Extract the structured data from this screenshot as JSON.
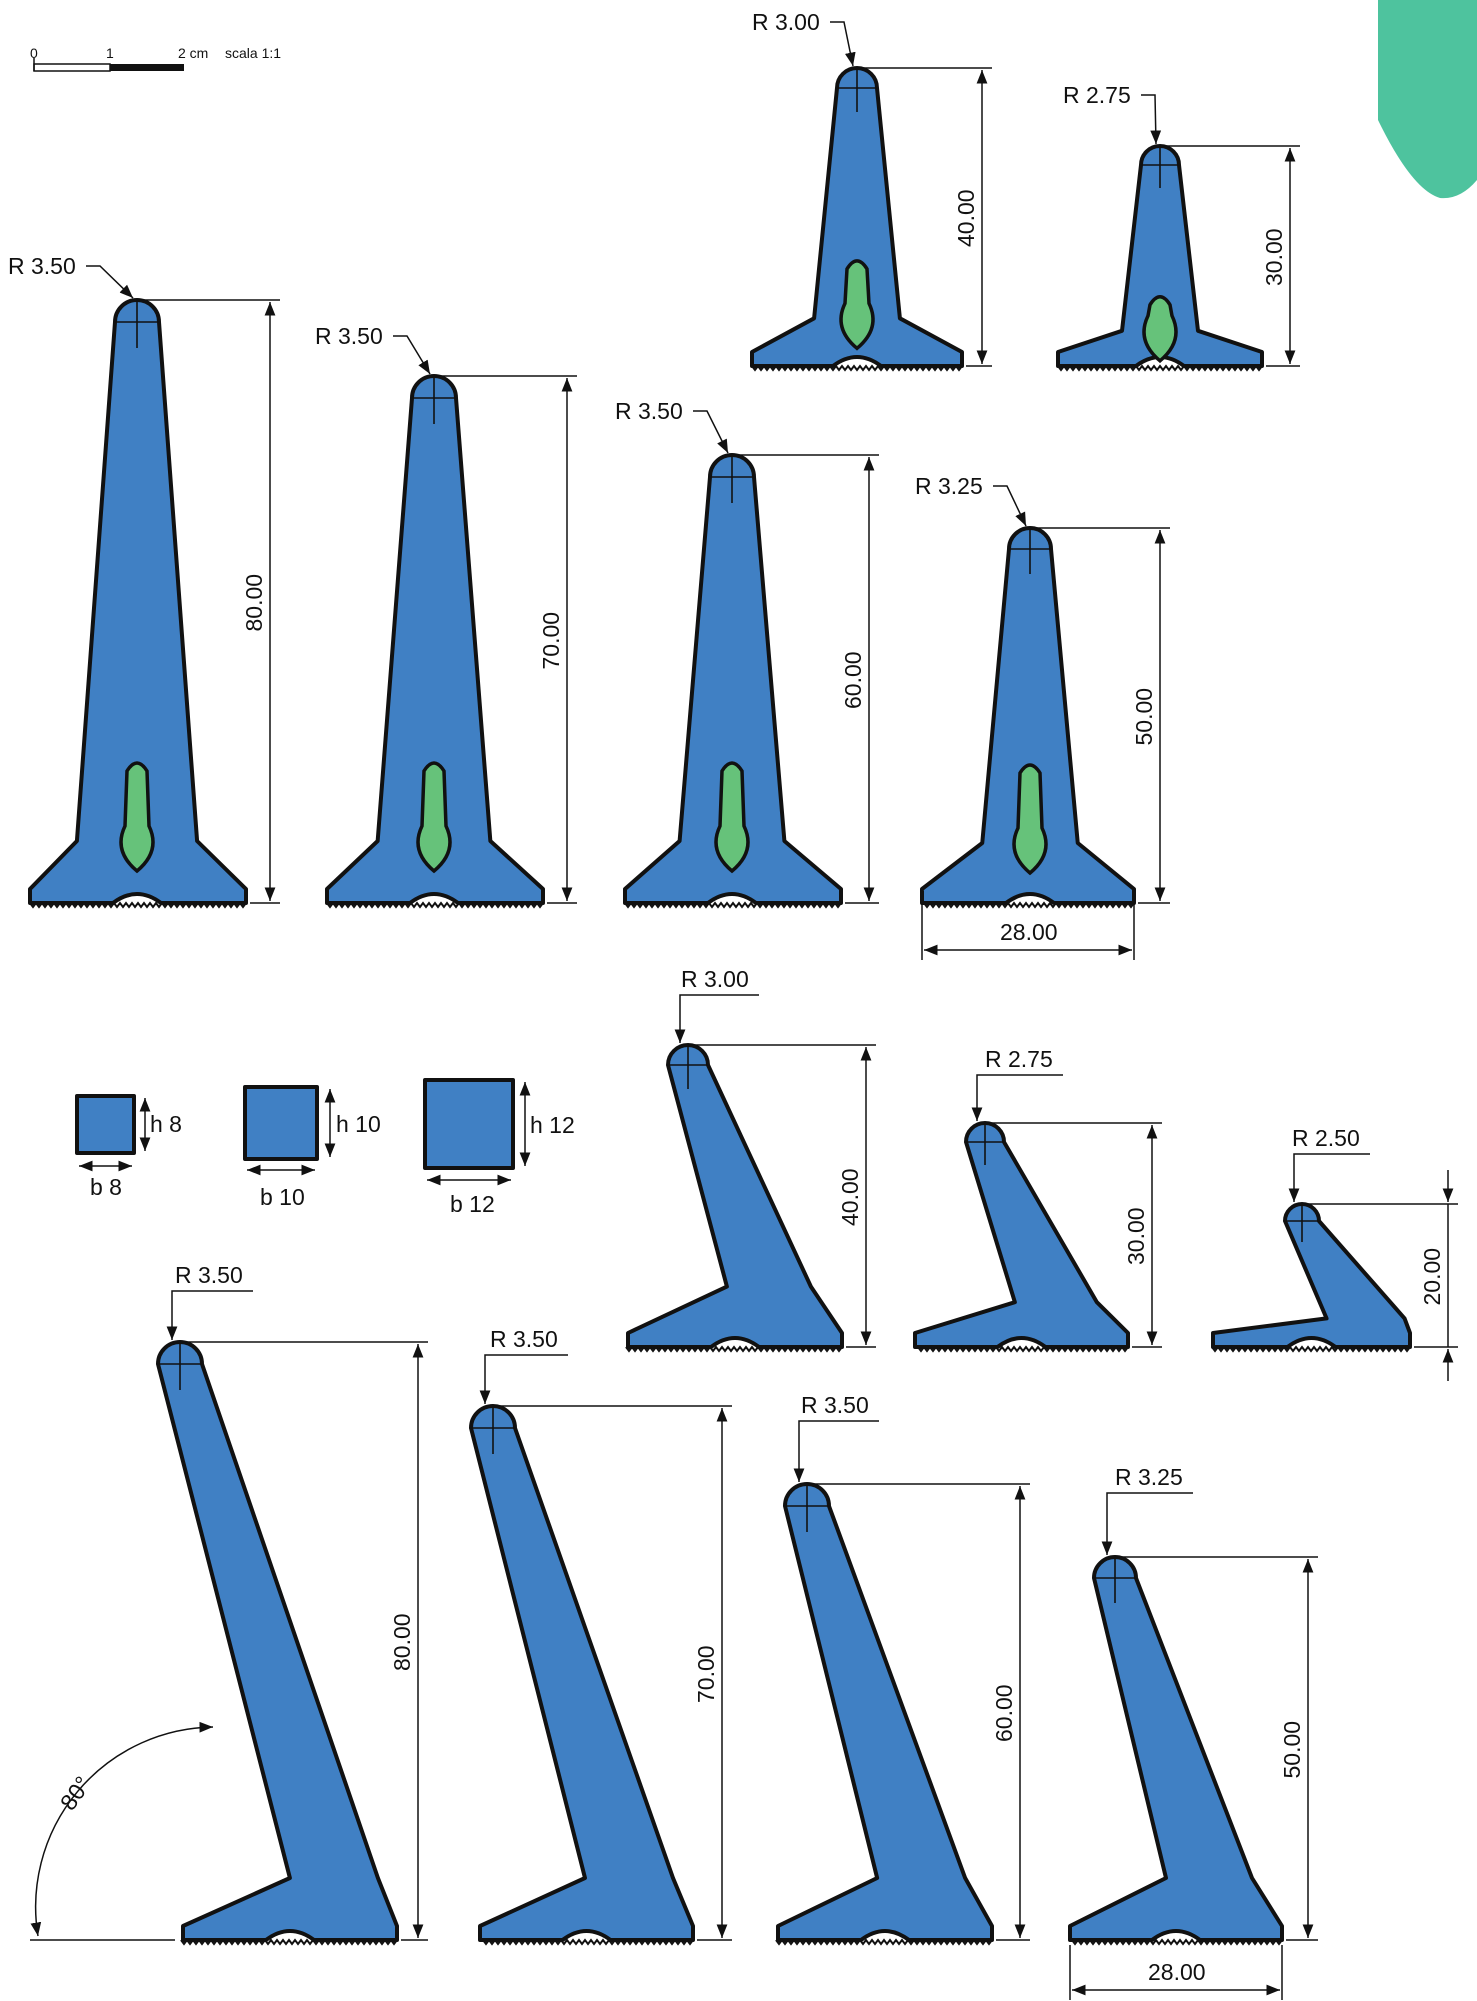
{
  "scale_bar": {
    "label_0": "0",
    "label_1": "1",
    "label_2": "2 cm",
    "scale_text": "scala 1:1"
  },
  "colors": {
    "profile": "#4080c4",
    "slot": "#66c27a",
    "tab": "#4ec39e",
    "outline": "#111111"
  },
  "symmetric_top": [
    {
      "radius": "R 3.00",
      "height": "40.00",
      "slot": true
    },
    {
      "radius": "R 2.75",
      "height": "30.00",
      "slot": true
    }
  ],
  "symmetric_main": [
    {
      "radius": "R 3.50",
      "height": "80.00",
      "slot": true
    },
    {
      "radius": "R 3.50",
      "height": "70.00",
      "slot": true
    },
    {
      "radius": "R 3.50",
      "height": "60.00",
      "slot": true
    },
    {
      "radius": "R 3.25",
      "height": "50.00",
      "slot": true
    }
  ],
  "base_width_label": "28.00",
  "sections": [
    {
      "h": "h 8",
      "b": "b 8"
    },
    {
      "h": "h 10",
      "b": "b 10"
    },
    {
      "h": "h 12",
      "b": "b 12"
    }
  ],
  "inclined_small": [
    {
      "radius": "R 3.00",
      "height": "40.00"
    },
    {
      "radius": "R 2.75",
      "height": "30.00"
    },
    {
      "radius": "R 2.50",
      "height": "20.00"
    }
  ],
  "inclined_main": [
    {
      "radius": "R 3.50",
      "height": "80.00"
    },
    {
      "radius": "R 3.50",
      "height": "70.00"
    },
    {
      "radius": "R 3.50",
      "height": "60.00"
    },
    {
      "radius": "R 3.25",
      "height": "50.00"
    }
  ],
  "angle_label": "80°",
  "base_width_label_bottom": "28.00"
}
